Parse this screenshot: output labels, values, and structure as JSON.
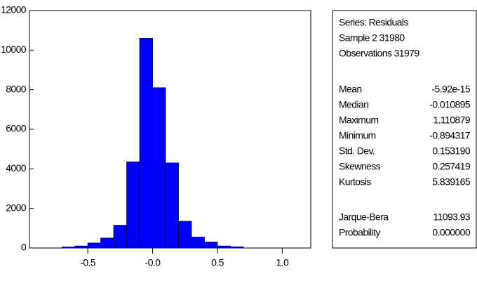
{
  "chart_data": {
    "type": "histogram",
    "bins": [
      -0.7,
      -0.6,
      -0.5,
      -0.4,
      -0.3,
      -0.2,
      -0.1,
      0.0,
      0.1,
      0.2,
      0.3,
      0.4,
      0.5,
      0.6,
      0.7
    ],
    "values": [
      50,
      100,
      250,
      500,
      1150,
      4350,
      10600,
      8100,
      4300,
      1350,
      550,
      300,
      100,
      60
    ],
    "color": "#0000ff",
    "xlim": [
      -0.95,
      1.22
    ],
    "xticks": [
      -0.5,
      {
        "value": 0,
        "label": "-0.0"
      },
      0.5,
      {
        "value": 1,
        "label": "1.0"
      }
    ],
    "ylim": [
      0,
      12000
    ],
    "yticks": [
      0,
      2000,
      4000,
      6000,
      8000,
      10000,
      12000
    ]
  },
  "stats_box": {
    "header": [
      "Series: Residuals",
      "Sample 2 31980",
      "Observations 31979"
    ],
    "stats": [
      [
        "Mean",
        "-5.92e-15"
      ],
      [
        "Median",
        "-0.010895"
      ],
      [
        "Maximum",
        "1.110879"
      ],
      [
        "Minimum",
        "-0.894317"
      ],
      [
        "Std. Dev.",
        "0.153190"
      ],
      [
        "Skewness",
        "0.257419"
      ],
      [
        "Kurtosis",
        "5.839165"
      ]
    ],
    "tests": [
      [
        "Jarque-Bera",
        "11093.93"
      ],
      [
        "Probability",
        "0.000000"
      ]
    ]
  }
}
